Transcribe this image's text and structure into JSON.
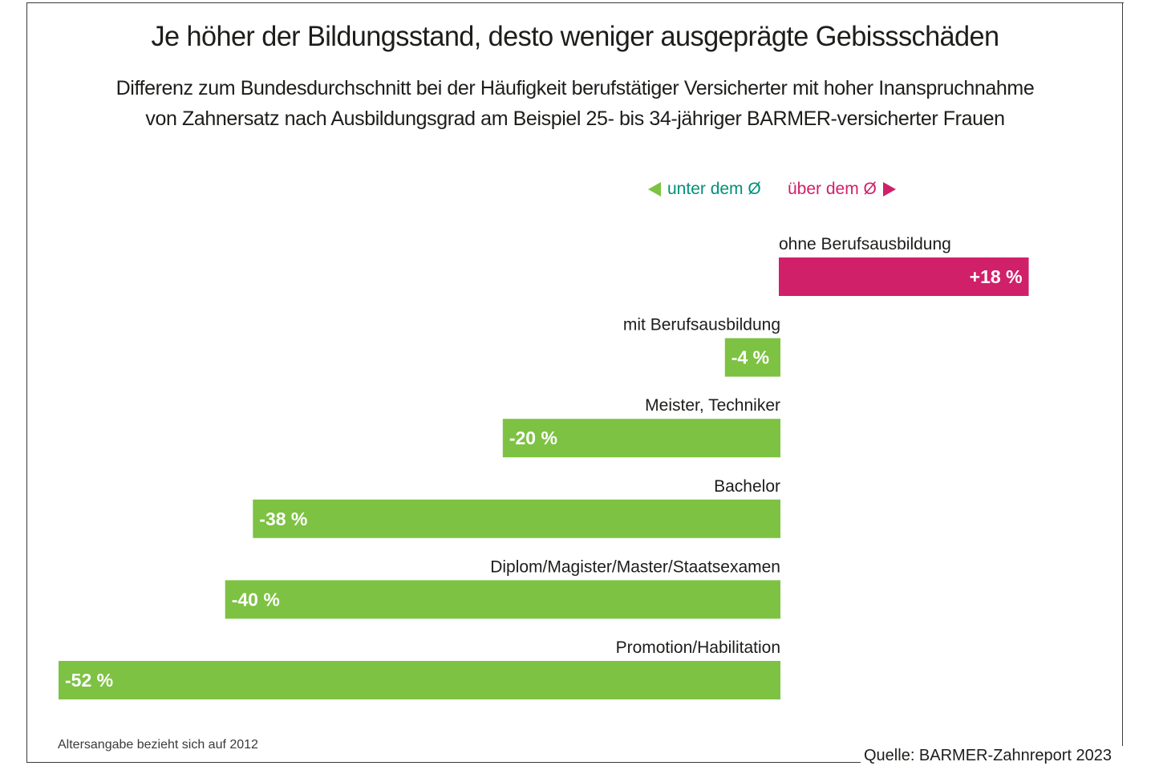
{
  "header": {
    "title": "Je höher der Bildungsstand, desto weniger ausgeprägte Gebissschäden",
    "subtitle_line1": "Differenz zum Bundesdurchschnitt bei der Häufigkeit berufstätiger Versicherter mit hoher Inanspruchnahme",
    "subtitle_line2": "von Zahnersatz nach Ausbildungsgrad am Beispiel 25- bis 34-jähriger BARMER-versicherter Frauen"
  },
  "legend": {
    "below": {
      "label": "unter dem Ø",
      "icon": "triangle-left-icon",
      "text_color": "#00917a",
      "marker_color": "#7dc242"
    },
    "above": {
      "label": "über dem Ø",
      "icon": "triangle-right-icon",
      "text_color": "#d0206a",
      "marker_color": "#d0206a"
    }
  },
  "colors": {
    "positive": "#d0206a",
    "negative": "#7dc242"
  },
  "chart_data": {
    "type": "bar",
    "orientation": "horizontal",
    "title": "Je höher der Bildungsstand, desto weniger ausgeprägte Gebissschäden",
    "subtitle": "Differenz zum Bundesdurchschnitt bei der Häufigkeit berufstätiger Versicherter mit hoher Inanspruchnahme von Zahnersatz nach Ausbildungsgrad am Beispiel 25- bis 34-jähriger BARMER-versicherter Frauen",
    "xlabel": "",
    "ylabel": "",
    "unit": "%",
    "xlim": [
      -52,
      18
    ],
    "grid": false,
    "legend_position": "top-right",
    "categories": [
      "ohne Berufsausbildung",
      "mit Berufsausbildung",
      "Meister, Techniker",
      "Bachelor",
      "Diplom/Magister/Master/Staatsexamen",
      "Promotion/Habilitation"
    ],
    "values": [
      18,
      -4,
      -20,
      -38,
      -40,
      -52
    ],
    "value_labels": [
      "+18 %",
      "-4 %",
      "-20 %",
      "-38 %",
      "-40 %",
      "-52 %"
    ]
  },
  "footer": {
    "note": "Altersangabe bezieht sich auf 2012",
    "source": "Quelle: BARMER-Zahnreport 2023"
  }
}
